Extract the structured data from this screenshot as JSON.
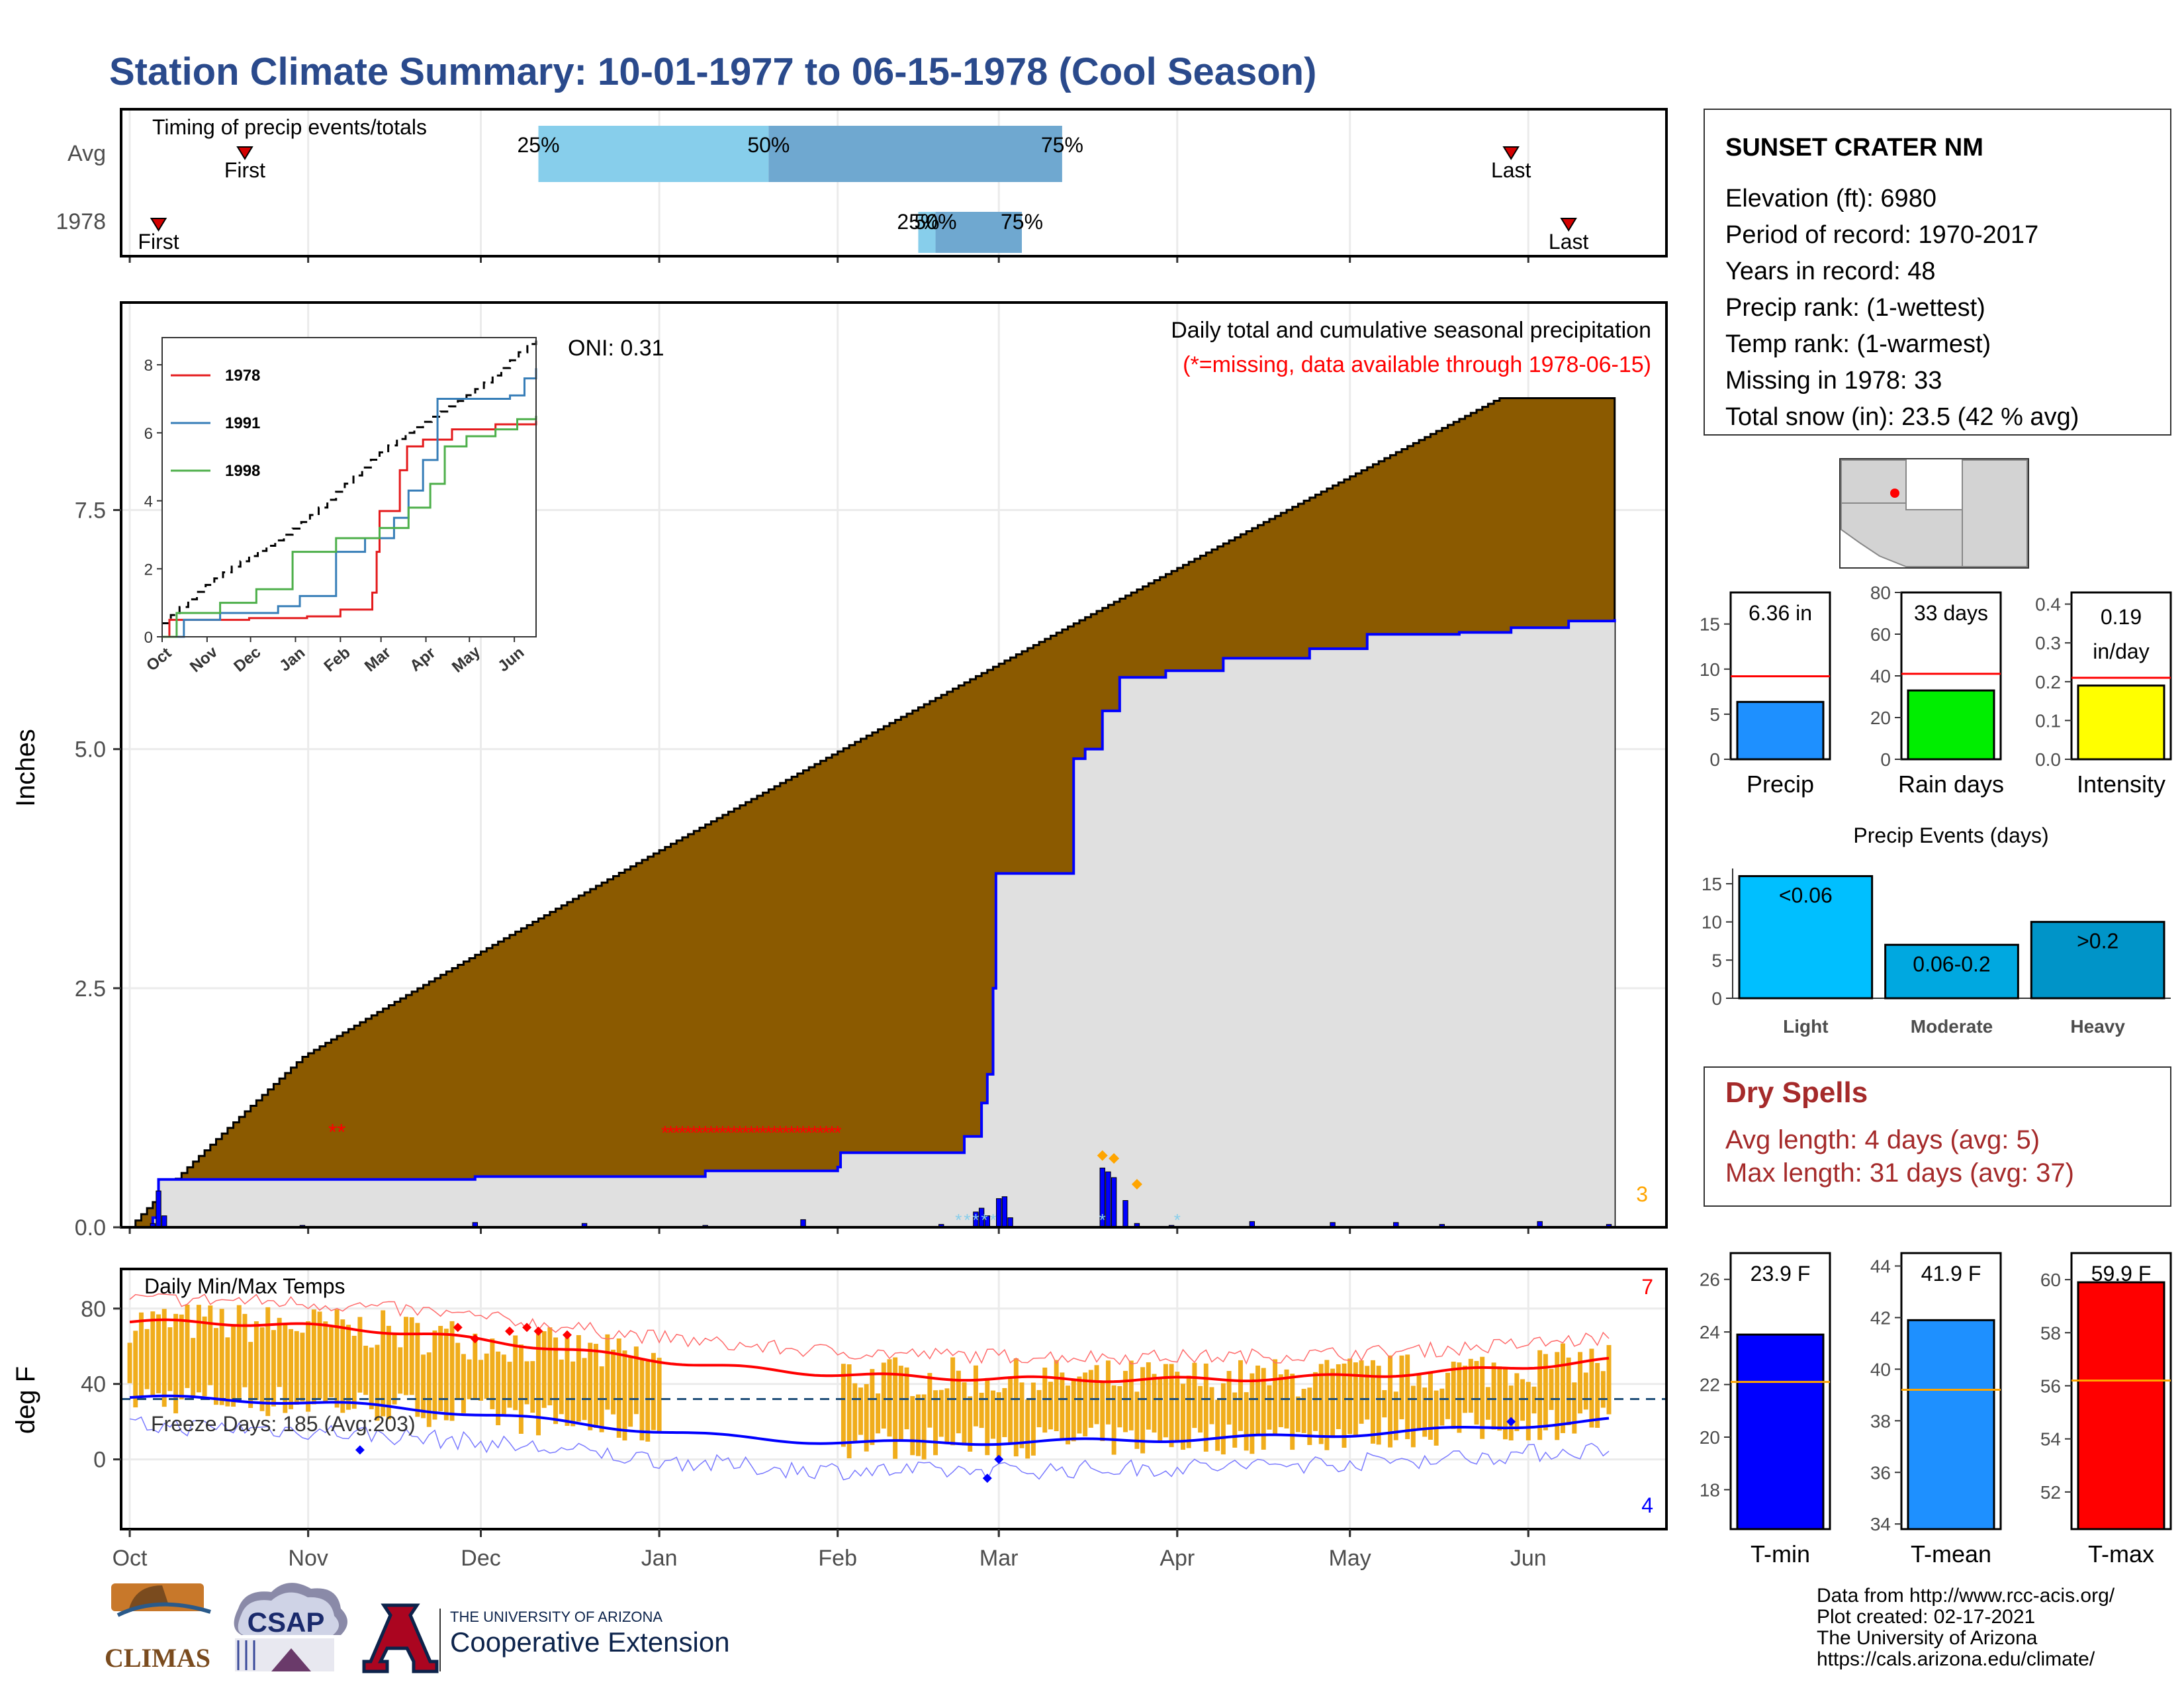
{
  "title": "Station Climate Summary: 10-01-1977 to 06-15-1978 (Cool Season)",
  "timing": {
    "title": "Timing of precip events/totals",
    "rows": [
      "Avg",
      "1978"
    ],
    "avg": {
      "first": 20,
      "last": 240,
      "q25": 71,
      "q50": 111,
      "q75": 162
    },
    "year": {
      "first": 5,
      "last": 250,
      "q25": 137,
      "q50": 140,
      "q75": 155
    },
    "first_label": "First",
    "last_label": "Last",
    "pct_labels": [
      "25%",
      "50%",
      "75%"
    ],
    "colors": {
      "light": "#87ceeb",
      "dark": "#6fa8d0",
      "marker": "#d40000"
    }
  },
  "precip": {
    "title": "Daily total and cumulative seasonal precipitation",
    "missing_note": "(*=missing, data available through 1978-06-15)",
    "oni": "ONI: 0.31",
    "ylabel": "Inches",
    "yticks": [
      "0.0",
      "2.5",
      "5.0",
      "7.5"
    ],
    "corner_count": "3",
    "fill_avg": "#8b5a00",
    "fill_year": "#e0e0e0",
    "line_year": "#0000ff"
  },
  "inset": {
    "yticks": [
      "0",
      "2",
      "4",
      "6",
      "8"
    ],
    "xticks": [
      "Oct",
      "Nov",
      "Dec",
      "Jan",
      "Feb",
      "Mar",
      "Apr",
      "May",
      "Jun"
    ],
    "legend": [
      "1978",
      "1991",
      "1998"
    ],
    "colors": [
      "#e41a1c",
      "#377eb8",
      "#4daf4a"
    ]
  },
  "temp": {
    "title": "Daily Min/Max Temps",
    "ylabel": "deg F",
    "yticks": [
      "0",
      "40",
      "80"
    ],
    "freeze_note": "Freeze Days: 185 (Avg:203)",
    "count_top": "7",
    "count_bottom": "4",
    "bar_color": "#f0ad1c"
  },
  "x_months": [
    "Oct",
    "Nov",
    "Dec",
    "Jan",
    "Feb",
    "Mar",
    "Apr",
    "May",
    "Jun"
  ],
  "station": {
    "name": "SUNSET CRATER NM",
    "lines": [
      "Elevation (ft): 6980",
      "Period of record: 1970-2017",
      "Years in record: 48",
      "Precip rank:  (1-wettest)",
      "Temp rank:  (1-warmest)",
      "Missing in 1978: 33",
      "Total snow (in): 23.5 (42 % avg)"
    ]
  },
  "summary_bars": [
    {
      "label": "Precip",
      "value_text": "6.36 in",
      "value": 6.36,
      "avg": 9.2,
      "ymax": 18.5,
      "ticks": [
        "0",
        "5",
        "10",
        "15"
      ],
      "tick_vals": [
        0,
        5,
        10,
        15
      ],
      "color": "#1e90ff"
    },
    {
      "label": "Rain days",
      "value_text": "33 days",
      "value": 33,
      "avg": 41,
      "ymax": 80,
      "ticks": [
        "0",
        "20",
        "40",
        "60",
        "80"
      ],
      "tick_vals": [
        0,
        20,
        40,
        60,
        80
      ],
      "color": "#00ee00"
    },
    {
      "label": "Intensity",
      "value_text": "0.19 in/day",
      "value": 0.19,
      "avg": 0.21,
      "ymax": 0.43,
      "ticks": [
        "0.0",
        "0.1",
        "0.2",
        "0.3",
        "0.4"
      ],
      "tick_vals": [
        0,
        0.1,
        0.2,
        0.3,
        0.4
      ],
      "color": "#ffff00"
    }
  ],
  "events": {
    "title": "Precip Events (days)",
    "categories": [
      "Light",
      "Moderate",
      "Heavy"
    ],
    "bar_labels": [
      "<0.06",
      "0.06-0.2",
      ">0.2"
    ],
    "values": [
      16,
      7,
      10
    ],
    "ymax": 17,
    "ticks": [
      "0",
      "5",
      "10",
      "15"
    ],
    "colors": [
      "#00bfff",
      "#00a8e0",
      "#0094c8"
    ]
  },
  "dry_spells": {
    "title": "Dry Spells",
    "avg_line": "Avg length: 4 days (avg: 5)",
    "max_line": "Max length: 31 days (avg: 37)",
    "color": "#a52a2a"
  },
  "temp_bars": [
    {
      "label": "T-min",
      "value_text": "23.9 F",
      "value": 23.9,
      "avg": 22.1,
      "ymin": 16.5,
      "ymax": 27,
      "ticks": [
        "18",
        "20",
        "22",
        "24",
        "26"
      ],
      "tick_vals": [
        18,
        20,
        22,
        24,
        26
      ],
      "color": "#0000ff"
    },
    {
      "label": "T-mean",
      "value_text": "41.9 F",
      "value": 41.9,
      "avg": 39.2,
      "ymin": 33.8,
      "ymax": 44.5,
      "ticks": [
        "34",
        "36",
        "38",
        "40",
        "42",
        "44"
      ],
      "tick_vals": [
        34,
        36,
        38,
        40,
        42,
        44
      ],
      "color": "#1e90ff"
    },
    {
      "label": "T-max",
      "value_text": "59.9 F",
      "value": 59.9,
      "avg": 56.2,
      "ymin": 50.6,
      "ymax": 61,
      "ticks": [
        "52",
        "54",
        "56",
        "58",
        "60"
      ],
      "tick_vals": [
        52,
        54,
        56,
        58,
        60
      ],
      "color": "#ff0000"
    }
  ],
  "footer": {
    "credits": [
      "Data from http://www.rcc-acis.org/",
      "Plot created: 02-17-2021",
      "The University of Arizona",
      "https://cals.arizona.edu/climate/"
    ],
    "logos": [
      "CLIMAS",
      "CSAP",
      "THE UNIVERSITY OF ARIZONA",
      "Cooperative Extension"
    ]
  }
}
